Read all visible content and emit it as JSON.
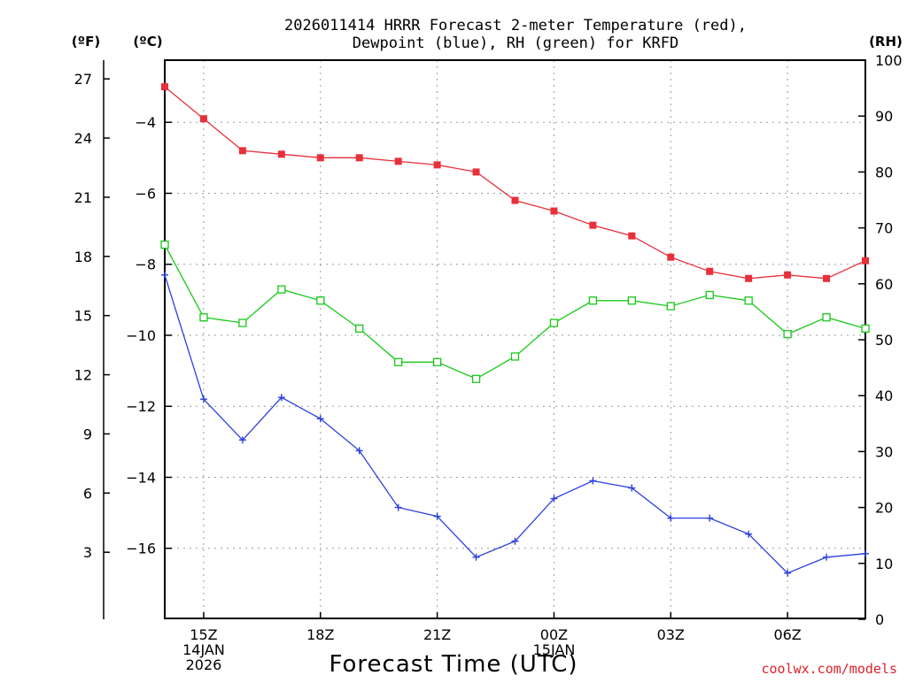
{
  "title_line1": "2026011414 HRRR Forecast 2-meter Temperature (red),",
  "title_line2": "Dewpoint (blue), RH (green) for KRFD",
  "unit_f": "(ºF)",
  "unit_c": "(ºC)",
  "unit_rh": "(RH)",
  "xlabel": "Forecast Time (UTC)",
  "credit": "coolwx.com/models",
  "colors": {
    "temperature": "#e8303a",
    "dewpoint": "#2a3fe0",
    "rh": "#18c818"
  },
  "chart_data": {
    "type": "line",
    "title": "2026011414 HRRR Forecast 2-meter Temperature (red), Dewpoint (blue), RH (green) for KRFD",
    "xlabel": "Forecast Time (UTC)",
    "x_hours": [
      14,
      15,
      16,
      17,
      18,
      19,
      20,
      21,
      22,
      23,
      24,
      25,
      26,
      27,
      28,
      29,
      30,
      31,
      32
    ],
    "xlim": [
      14,
      32
    ],
    "celsius_range": [
      -18,
      -2.25
    ],
    "rh_range": [
      0,
      100
    ],
    "x_ticks": [
      {
        "hour": 15,
        "lines": [
          "15Z",
          "14JAN",
          "2026"
        ]
      },
      {
        "hour": 18,
        "lines": [
          "18Z"
        ]
      },
      {
        "hour": 21,
        "lines": [
          "21Z"
        ]
      },
      {
        "hour": 24,
        "lines": [
          "00Z",
          "15JAN"
        ]
      },
      {
        "hour": 27,
        "lines": [
          "03Z"
        ]
      },
      {
        "hour": 30,
        "lines": [
          "06Z"
        ]
      }
    ],
    "f_ticks": [
      {
        "value": 3,
        "label": "3"
      },
      {
        "value": 6,
        "label": "6"
      },
      {
        "value": 9,
        "label": "9"
      },
      {
        "value": 12,
        "label": "12"
      },
      {
        "value": 15,
        "label": "15"
      },
      {
        "value": 18,
        "label": "18"
      },
      {
        "value": 21,
        "label": "21"
      },
      {
        "value": 24,
        "label": "24"
      },
      {
        "value": 27,
        "label": "27"
      }
    ],
    "c_ticks": [
      {
        "value": -16,
        "label": "−16"
      },
      {
        "value": -14,
        "label": "−14"
      },
      {
        "value": -12,
        "label": "−12"
      },
      {
        "value": -10,
        "label": "−10"
      },
      {
        "value": -8,
        "label": "−8"
      },
      {
        "value": -6,
        "label": "−6"
      },
      {
        "value": -4,
        "label": "−4"
      }
    ],
    "rh_ticks": [
      {
        "value": 0,
        "label": "0"
      },
      {
        "value": 10,
        "label": "10"
      },
      {
        "value": 20,
        "label": "20"
      },
      {
        "value": 30,
        "label": "30"
      },
      {
        "value": 40,
        "label": "40"
      },
      {
        "value": 50,
        "label": "50"
      },
      {
        "value": 60,
        "label": "60"
      },
      {
        "value": 70,
        "label": "70"
      },
      {
        "value": 80,
        "label": "80"
      },
      {
        "value": 90,
        "label": "90"
      },
      {
        "value": 100,
        "label": "100"
      }
    ],
    "series": [
      {
        "name": "Temperature",
        "unit": "C",
        "marker": "square-filled",
        "color_key": "temperature",
        "values": [
          -3.0,
          -3.9,
          -4.8,
          -4.9,
          -5.0,
          -5.0,
          -5.1,
          -5.2,
          -5.4,
          -6.2,
          -6.5,
          -6.9,
          -7.2,
          -7.8,
          -8.2,
          -8.4,
          -8.3,
          -8.4,
          -7.9
        ]
      },
      {
        "name": "Dewpoint",
        "unit": "C",
        "marker": "plus",
        "color_key": "dewpoint",
        "values": [
          -8.3,
          -11.8,
          -12.95,
          -11.75,
          -12.35,
          -13.25,
          -14.85,
          -15.1,
          -16.25,
          -15.8,
          -14.6,
          -14.1,
          -14.3,
          -15.15,
          -15.15,
          -15.6,
          -16.7,
          -16.25,
          -16.15
        ]
      },
      {
        "name": "RH",
        "unit": "%",
        "marker": "square-open",
        "color_key": "rh",
        "values": [
          67,
          54,
          53,
          59,
          57,
          52,
          46,
          46,
          43,
          47,
          53,
          57,
          57,
          56,
          58,
          57,
          51,
          54,
          52
        ]
      }
    ]
  }
}
